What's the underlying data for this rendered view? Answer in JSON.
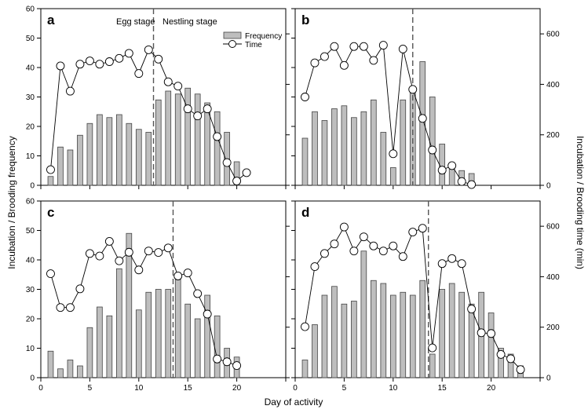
{
  "figure": {
    "ylabel_left": "Incubation / Brooding frequency",
    "ylabel_right": "Incubation / Brooding time (min)",
    "xlabel": "Day of activity",
    "legend": {
      "bar_label": "Frequency",
      "line_label": "Time"
    },
    "stage_labels": {
      "egg": "Egg stage",
      "nestling": "Nestling stage"
    }
  },
  "chart_data": [
    {
      "panel": "a",
      "type": "bar+line",
      "x_ticks": [
        "",
        "",
        "",
        "",
        "",
        ""
      ],
      "xlim": [
        0,
        25
      ],
      "left_ticks": [
        "0",
        "10",
        "20",
        "30",
        "40",
        "50",
        "60"
      ],
      "ylim_left": [
        0,
        60
      ],
      "right_ticks": [],
      "ylim_right": [
        0,
        700
      ],
      "divider_day": 11.5,
      "series": [
        {
          "name": "Frequency",
          "kind": "bar",
          "x": [
            1,
            2,
            3,
            4,
            5,
            6,
            7,
            8,
            9,
            10,
            11,
            12,
            13,
            14,
            15,
            16,
            17,
            18,
            19,
            20
          ],
          "values": [
            3,
            13,
            12,
            17,
            21,
            24,
            23,
            24,
            21,
            19,
            18,
            29,
            32,
            31,
            33,
            31,
            28,
            25,
            18,
            8
          ]
        },
        {
          "name": "Time",
          "kind": "line",
          "axis": "right",
          "x": [
            1,
            2,
            3,
            4,
            5,
            6,
            7,
            8,
            9,
            10,
            11,
            12,
            13,
            14,
            15,
            16,
            17,
            18,
            19,
            20,
            21
          ],
          "values": [
            62,
            473,
            373,
            480,
            493,
            480,
            490,
            503,
            523,
            443,
            537,
            500,
            410,
            393,
            303,
            275,
            303,
            193,
            90,
            17,
            50
          ]
        }
      ]
    },
    {
      "panel": "b",
      "type": "bar+line",
      "x_ticks": [
        "",
        "",
        "",
        "",
        "",
        ""
      ],
      "xlim": [
        0,
        25
      ],
      "left_ticks": [],
      "ylim_left": [
        0,
        60
      ],
      "right_ticks": [
        "0",
        "200",
        "400",
        "600"
      ],
      "ylim_right": [
        0,
        700
      ],
      "divider_day": 12,
      "series": [
        {
          "name": "Frequency",
          "kind": "bar",
          "x": [
            1,
            2,
            3,
            4,
            5,
            6,
            7,
            8,
            9,
            10,
            11,
            12,
            13,
            14,
            15,
            16,
            17,
            18
          ],
          "values": [
            16,
            25,
            22,
            26,
            27,
            23,
            25,
            29,
            18,
            6,
            29,
            32,
            42,
            30,
            14,
            7,
            5,
            4
          ]
        },
        {
          "name": "Time",
          "kind": "line",
          "axis": "right",
          "x": [
            1,
            2,
            3,
            4,
            5,
            6,
            7,
            8,
            9,
            10,
            11,
            12,
            13,
            14,
            15,
            16,
            17,
            18
          ],
          "values": [
            350,
            485,
            510,
            550,
            475,
            550,
            550,
            495,
            555,
            125,
            540,
            380,
            265,
            140,
            60,
            78,
            15,
            3
          ]
        }
      ]
    },
    {
      "panel": "c",
      "type": "bar+line",
      "x_ticks": [
        "0",
        "5",
        "10",
        "15",
        "20",
        ""
      ],
      "xlim": [
        0,
        25
      ],
      "left_ticks": [
        "0",
        "10",
        "20",
        "30",
        "40",
        "50",
        "60"
      ],
      "ylim_left": [
        0,
        60
      ],
      "right_ticks": [],
      "ylim_right": [
        0,
        700
      ],
      "divider_day": 13.5,
      "series": [
        {
          "name": "Frequency",
          "kind": "bar",
          "x": [
            1,
            2,
            3,
            4,
            5,
            6,
            7,
            8,
            9,
            10,
            11,
            12,
            13,
            14,
            15,
            16,
            17,
            18,
            19,
            20
          ],
          "values": [
            9,
            3,
            6,
            4,
            17,
            24,
            21,
            37,
            49,
            23,
            29,
            30,
            30,
            35,
            25,
            20,
            28,
            21,
            10,
            7
          ]
        },
        {
          "name": "Time",
          "kind": "line",
          "axis": "right",
          "x": [
            1,
            2,
            3,
            4,
            5,
            6,
            7,
            8,
            9,
            10,
            11,
            12,
            13,
            14,
            15,
            16,
            17,
            18,
            19,
            20
          ],
          "values": [
            412,
            278,
            278,
            352,
            492,
            482,
            540,
            463,
            497,
            427,
            502,
            496,
            514,
            403,
            415,
            333,
            252,
            74,
            63,
            48
          ]
        }
      ]
    },
    {
      "panel": "d",
      "type": "bar+line",
      "x_ticks": [
        "0",
        "5",
        "10",
        "15",
        "20",
        ""
      ],
      "xlim": [
        0,
        25
      ],
      "left_ticks": [],
      "ylim_left": [
        0,
        60
      ],
      "right_ticks": [
        "0",
        "200",
        "400",
        "600"
      ],
      "ylim_right": [
        0,
        700
      ],
      "divider_day": 13.6,
      "series": [
        {
          "name": "Frequency",
          "kind": "bar",
          "x": [
            1,
            2,
            3,
            4,
            5,
            6,
            7,
            8,
            9,
            10,
            11,
            12,
            13,
            14,
            15,
            16,
            17,
            18,
            19,
            20,
            21,
            22,
            23
          ],
          "values": [
            6,
            18,
            28,
            31,
            25,
            26,
            43,
            33,
            32,
            28,
            29,
            28,
            33,
            8,
            30,
            32,
            29,
            25,
            29,
            22,
            10,
            8,
            4
          ]
        },
        {
          "name": "Time",
          "kind": "line",
          "axis": "right",
          "x": [
            1,
            2,
            3,
            4,
            5,
            6,
            7,
            8,
            9,
            10,
            11,
            12,
            13,
            14,
            15,
            16,
            17,
            18,
            19,
            20,
            21,
            22,
            23
          ],
          "values": [
            202,
            440,
            492,
            530,
            597,
            502,
            558,
            522,
            502,
            522,
            480,
            577,
            592,
            118,
            452,
            472,
            452,
            272,
            178,
            175,
            92,
            75,
            32
          ]
        }
      ]
    }
  ]
}
